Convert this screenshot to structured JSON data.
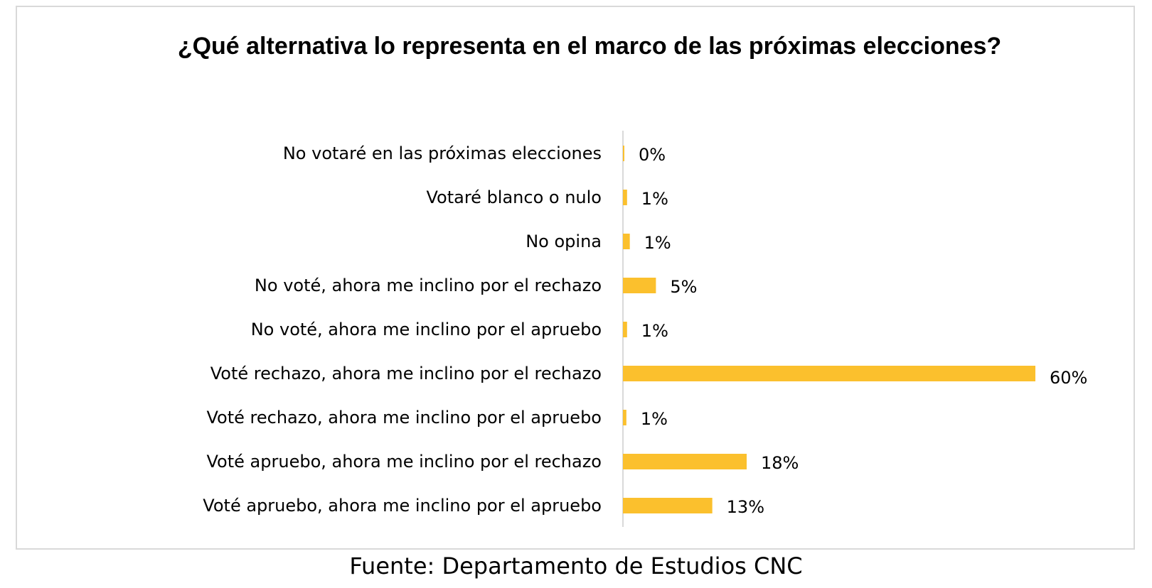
{
  "source": "Fuente: Departamento de Estudios CNC",
  "colors": {
    "bar": "#fbc02d",
    "axis": "#d9d9d9",
    "text": "#000000"
  },
  "chart_data": {
    "type": "bar",
    "orientation": "horizontal",
    "title": "¿Qué alternativa lo representa en el marco de las próximas elecciones?",
    "xlabel": "",
    "ylabel": "",
    "categories": [
      "No votaré en las próximas elecciones",
      "Votaré blanco o nulo",
      "No opina",
      "No voté, ahora me inclino por el rechazo",
      "No voté, ahora me inclino por el apruebo",
      "Voté rechazo, ahora me inclino por el rechazo",
      "Voté rechazo, ahora me inclino por el apruebo",
      "Voté apruebo, ahora me inclino por el rechazo",
      "Voté apruebo, ahora me inclino por el apruebo"
    ],
    "values": [
      0.2,
      0.6,
      1.0,
      4.8,
      0.6,
      60,
      0.5,
      18,
      13
    ],
    "data_labels": [
      "0%",
      "1%",
      "1%",
      "5%",
      "1%",
      "60%",
      "1%",
      "18%",
      "13%"
    ],
    "xlim": [
      0,
      60
    ],
    "grid": false,
    "legend": "none"
  }
}
